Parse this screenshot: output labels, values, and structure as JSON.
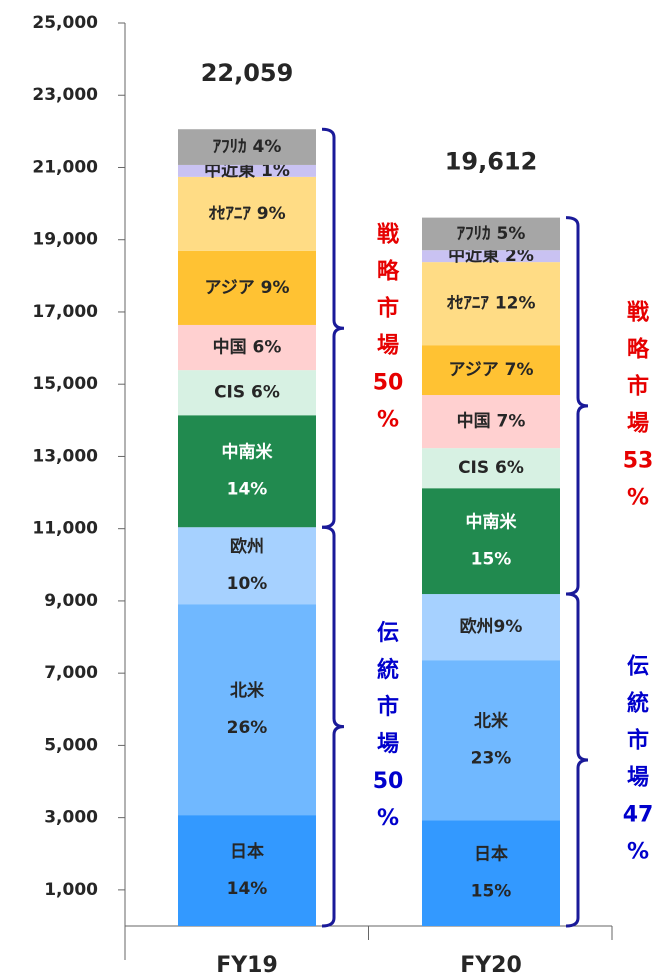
{
  "chart_data": {
    "type": "stacked-bar",
    "categories": [
      "FY19",
      "FY20"
    ],
    "totals": [
      22059,
      19612
    ],
    "total_labels": [
      "22,059",
      "19,612"
    ],
    "ylim": [
      0,
      25000
    ],
    "yticks": [
      {
        "value": 1000,
        "label": "1,000"
      },
      {
        "value": 3000,
        "label": "3,000"
      },
      {
        "value": 5000,
        "label": "5,000"
      },
      {
        "value": 7000,
        "label": "7,000"
      },
      {
        "value": 9000,
        "label": "9,000"
      },
      {
        "value": 11000,
        "label": "11,000"
      },
      {
        "value": 13000,
        "label": "13,000"
      },
      {
        "value": 15000,
        "label": "15,000"
      },
      {
        "value": 17000,
        "label": "17,000"
      },
      {
        "value": 19000,
        "label": "19,000"
      },
      {
        "value": 21000,
        "label": "21,000"
      },
      {
        "value": 23000,
        "label": "23,000"
      },
      {
        "value": 25000,
        "label": "25,000"
      }
    ],
    "series": [
      {
        "color": "#3399ff",
        "text_color": "#262626",
        "values": [
          3070,
          2930
        ],
        "labels": [
          [
            "日本",
            "14%"
          ],
          [
            "日本",
            "15%"
          ]
        ]
      },
      {
        "color": "#70b8ff",
        "text_color": "#262626",
        "values": [
          5840,
          4430
        ],
        "labels": [
          [
            "北米",
            "26%"
          ],
          [
            "北米",
            "23%"
          ]
        ]
      },
      {
        "color": "#a6d1ff",
        "text_color": "#262626",
        "values": [
          2130,
          1830
        ],
        "labels": [
          [
            "欧州",
            "10%"
          ],
          [
            "欧州9%"
          ]
        ]
      },
      {
        "color": "#218a4f",
        "text_color": "#ffffff",
        "values": [
          3100,
          2930
        ],
        "labels": [
          [
            "中南米",
            "14%"
          ],
          [
            "中南米",
            "15%"
          ]
        ]
      },
      {
        "color": "#d7f1e3",
        "text_color": "#262626",
        "values": [
          1250,
          1110
        ],
        "labels": [
          [
            "CIS 6%"
          ],
          [
            "CIS 6%"
          ]
        ]
      },
      {
        "color": "#ffd0d0",
        "text_color": "#262626",
        "values": [
          1250,
          1470
        ],
        "labels": [
          [
            "中国 6%"
          ],
          [
            "中国 7%"
          ]
        ]
      },
      {
        "color": "#ffc233",
        "text_color": "#262626",
        "values": [
          2050,
          1380
        ],
        "labels": [
          [
            "アジア 9%"
          ],
          [
            "アジア 7%"
          ]
        ]
      },
      {
        "color": "#ffdc85",
        "text_color": "#262626",
        "values": [
          2050,
          2300
        ],
        "labels": [
          [
            "ｵｾｱﾆｱ 9%"
          ],
          [
            "ｵｾｱﾆｱ 12%"
          ]
        ]
      },
      {
        "color": "#c9c2f2",
        "text_color": "#262626",
        "values": [
          330,
          330
        ],
        "labels": [
          [
            "中近東 1%"
          ],
          [
            "中近東 2%"
          ]
        ]
      },
      {
        "color": "#a6a6a6",
        "text_color": "#262626",
        "values": [
          989,
          902
        ],
        "labels": [
          [
            "ｱﾌﾘｶ 4%"
          ],
          [
            "ｱﾌﾘｶ 5%"
          ]
        ]
      }
    ],
    "annotations": [
      {
        "text": [
          "伝",
          "統",
          "市",
          "場",
          "50",
          "%"
        ],
        "color": "#0000cc"
      },
      {
        "text": [
          "戦",
          "略",
          "市",
          "場",
          "50",
          "%"
        ],
        "color": "#e60000"
      },
      {
        "text": [
          "伝",
          "統",
          "市",
          "場",
          "47",
          "%"
        ],
        "color": "#0000cc"
      },
      {
        "text": [
          "戦",
          "略",
          "市",
          "場",
          "53",
          "%"
        ],
        "color": "#e60000"
      }
    ]
  }
}
